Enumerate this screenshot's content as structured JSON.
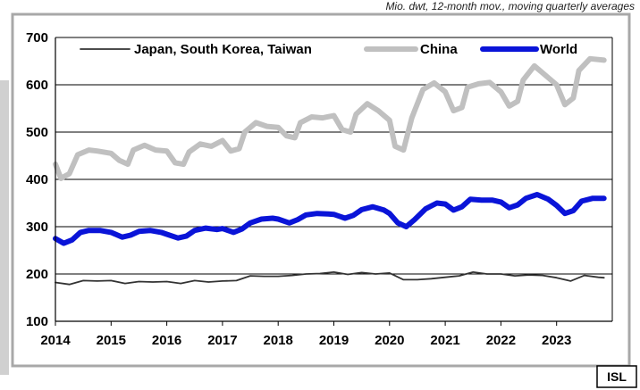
{
  "header_note": "Mio. dwt, 12-month mov., moving quarterly averages",
  "source_badge": "ISL",
  "chart_data": {
    "type": "line",
    "title": "",
    "xlabel": "",
    "ylabel": "",
    "xlim": [
      2014,
      2024
    ],
    "ylim": [
      100,
      700
    ],
    "x_ticks": [
      2014,
      2015,
      2016,
      2017,
      2018,
      2019,
      2020,
      2021,
      2022,
      2023
    ],
    "y_ticks": [
      100,
      200,
      300,
      400,
      500,
      600,
      700
    ],
    "grid": "horizontal",
    "legend": "top",
    "series": [
      {
        "name": "Japan, South Korea, Taiwan",
        "color": "#333333",
        "points": [
          [
            2014.0,
            182
          ],
          [
            2014.25,
            178
          ],
          [
            2014.5,
            186
          ],
          [
            2014.75,
            185
          ],
          [
            2015.0,
            186
          ],
          [
            2015.25,
            180
          ],
          [
            2015.5,
            184
          ],
          [
            2015.75,
            183
          ],
          [
            2016.0,
            184
          ],
          [
            2016.25,
            180
          ],
          [
            2016.5,
            186
          ],
          [
            2016.75,
            183
          ],
          [
            2017.0,
            185
          ],
          [
            2017.25,
            186
          ],
          [
            2017.5,
            196
          ],
          [
            2017.75,
            195
          ],
          [
            2018.0,
            195
          ],
          [
            2018.25,
            197
          ],
          [
            2018.5,
            200
          ],
          [
            2018.75,
            201
          ],
          [
            2019.0,
            204
          ],
          [
            2019.25,
            199
          ],
          [
            2019.5,
            203
          ],
          [
            2019.75,
            200
          ],
          [
            2020.0,
            202
          ],
          [
            2020.25,
            188
          ],
          [
            2020.5,
            188
          ],
          [
            2020.75,
            190
          ],
          [
            2021.0,
            193
          ],
          [
            2021.25,
            196
          ],
          [
            2021.5,
            204
          ],
          [
            2021.75,
            200
          ],
          [
            2022.0,
            200
          ],
          [
            2022.25,
            196
          ],
          [
            2022.5,
            198
          ],
          [
            2022.75,
            197
          ],
          [
            2023.0,
            192
          ],
          [
            2023.25,
            185
          ],
          [
            2023.5,
            197
          ],
          [
            2023.75,
            193
          ],
          [
            2023.85,
            192
          ]
        ]
      },
      {
        "name": "China",
        "color": "#c0c0c0",
        "points": [
          [
            2014.0,
            432
          ],
          [
            2014.1,
            402
          ],
          [
            2014.25,
            412
          ],
          [
            2014.4,
            452
          ],
          [
            2014.6,
            462
          ],
          [
            2014.75,
            460
          ],
          [
            2015.0,
            455
          ],
          [
            2015.15,
            440
          ],
          [
            2015.3,
            432
          ],
          [
            2015.4,
            462
          ],
          [
            2015.6,
            472
          ],
          [
            2015.8,
            462
          ],
          [
            2016.0,
            460
          ],
          [
            2016.15,
            435
          ],
          [
            2016.3,
            432
          ],
          [
            2016.4,
            458
          ],
          [
            2016.6,
            475
          ],
          [
            2016.8,
            470
          ],
          [
            2017.0,
            482
          ],
          [
            2017.15,
            460
          ],
          [
            2017.3,
            465
          ],
          [
            2017.4,
            500
          ],
          [
            2017.6,
            520
          ],
          [
            2017.8,
            512
          ],
          [
            2018.0,
            510
          ],
          [
            2018.15,
            492
          ],
          [
            2018.3,
            488
          ],
          [
            2018.4,
            520
          ],
          [
            2018.6,
            532
          ],
          [
            2018.8,
            530
          ],
          [
            2019.0,
            535
          ],
          [
            2019.15,
            505
          ],
          [
            2019.3,
            500
          ],
          [
            2019.4,
            538
          ],
          [
            2019.6,
            560
          ],
          [
            2019.8,
            545
          ],
          [
            2020.0,
            525
          ],
          [
            2020.1,
            470
          ],
          [
            2020.25,
            462
          ],
          [
            2020.4,
            530
          ],
          [
            2020.6,
            590
          ],
          [
            2020.8,
            604
          ],
          [
            2021.0,
            585
          ],
          [
            2021.15,
            545
          ],
          [
            2021.3,
            552
          ],
          [
            2021.4,
            595
          ],
          [
            2021.6,
            602
          ],
          [
            2021.8,
            605
          ],
          [
            2022.0,
            585
          ],
          [
            2022.15,
            555
          ],
          [
            2022.3,
            565
          ],
          [
            2022.4,
            610
          ],
          [
            2022.6,
            640
          ],
          [
            2022.8,
            620
          ],
          [
            2023.0,
            600
          ],
          [
            2023.15,
            558
          ],
          [
            2023.3,
            572
          ],
          [
            2023.4,
            630
          ],
          [
            2023.6,
            655
          ],
          [
            2023.85,
            652
          ]
        ]
      },
      {
        "name": "World",
        "color": "#0a14d8",
        "points": [
          [
            2014.0,
            275
          ],
          [
            2014.15,
            265
          ],
          [
            2014.3,
            272
          ],
          [
            2014.45,
            288
          ],
          [
            2014.6,
            292
          ],
          [
            2014.8,
            292
          ],
          [
            2015.0,
            288
          ],
          [
            2015.2,
            278
          ],
          [
            2015.35,
            282
          ],
          [
            2015.5,
            290
          ],
          [
            2015.7,
            292
          ],
          [
            2015.9,
            288
          ],
          [
            2016.0,
            284
          ],
          [
            2016.2,
            276
          ],
          [
            2016.35,
            280
          ],
          [
            2016.5,
            292
          ],
          [
            2016.7,
            297
          ],
          [
            2016.9,
            294
          ],
          [
            2017.0,
            296
          ],
          [
            2017.2,
            288
          ],
          [
            2017.35,
            295
          ],
          [
            2017.5,
            308
          ],
          [
            2017.7,
            316
          ],
          [
            2017.9,
            318
          ],
          [
            2018.0,
            316
          ],
          [
            2018.2,
            308
          ],
          [
            2018.35,
            315
          ],
          [
            2018.5,
            325
          ],
          [
            2018.7,
            328
          ],
          [
            2018.9,
            327
          ],
          [
            2019.0,
            326
          ],
          [
            2019.2,
            318
          ],
          [
            2019.35,
            324
          ],
          [
            2019.5,
            336
          ],
          [
            2019.7,
            342
          ],
          [
            2019.9,
            335
          ],
          [
            2020.0,
            328
          ],
          [
            2020.15,
            308
          ],
          [
            2020.3,
            300
          ],
          [
            2020.45,
            315
          ],
          [
            2020.65,
            338
          ],
          [
            2020.85,
            350
          ],
          [
            2021.0,
            348
          ],
          [
            2021.15,
            335
          ],
          [
            2021.3,
            342
          ],
          [
            2021.45,
            358
          ],
          [
            2021.65,
            356
          ],
          [
            2021.85,
            356
          ],
          [
            2022.0,
            352
          ],
          [
            2022.15,
            340
          ],
          [
            2022.3,
            346
          ],
          [
            2022.45,
            360
          ],
          [
            2022.65,
            368
          ],
          [
            2022.85,
            358
          ],
          [
            2023.0,
            345
          ],
          [
            2023.15,
            328
          ],
          [
            2023.3,
            334
          ],
          [
            2023.45,
            354
          ],
          [
            2023.65,
            360
          ],
          [
            2023.85,
            360
          ]
        ]
      }
    ]
  }
}
